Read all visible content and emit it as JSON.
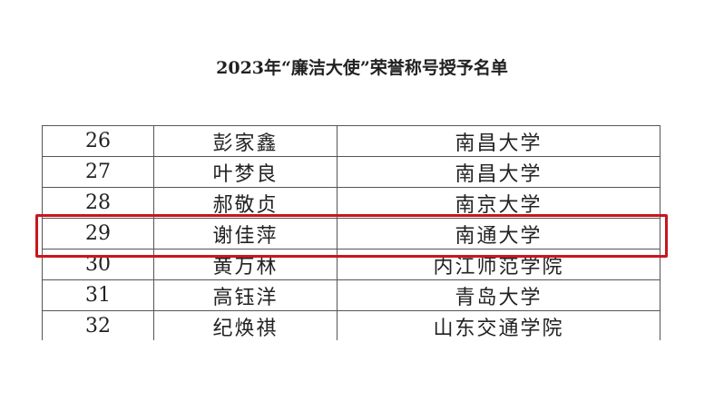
{
  "title": "2023年“廉洁大使”荣誉称号授予名单",
  "rows": [
    {
      "no": "26",
      "name": "彭家鑫",
      "school": "南昌大学"
    },
    {
      "no": "27",
      "name": "叶梦良",
      "school": "南昌大学"
    },
    {
      "no": "28",
      "name": "郝敬贞",
      "school": "南京大学"
    },
    {
      "no": "29",
      "name": "谢佳萍",
      "school": "南通大学"
    },
    {
      "no": "30",
      "name": "黄万林",
      "school": "内江师范学院"
    },
    {
      "no": "31",
      "name": "高钰洋",
      "school": "青岛大学"
    },
    {
      "no": "32",
      "name": "纪焕祺",
      "school": "山东交通学院"
    }
  ],
  "highlight": {
    "row_no": "29",
    "color": "#c8161d"
  }
}
